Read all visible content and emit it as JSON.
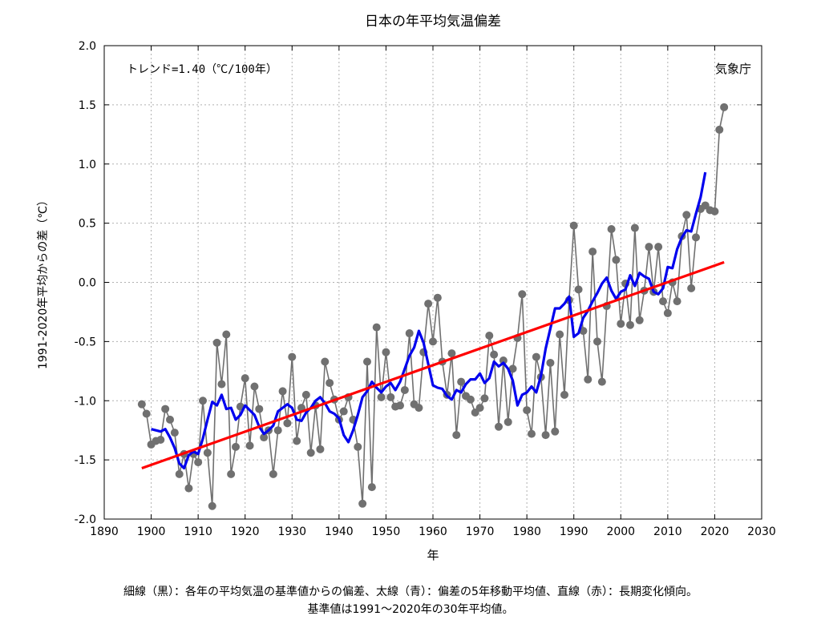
{
  "chart_data": {
    "type": "line",
    "title": "日本の年平均気温偏差",
    "xlabel": "年",
    "ylabel": "1991-2020年平均からの差（℃）",
    "xlim": [
      1890,
      2030
    ],
    "ylim": [
      -2.0,
      2.0
    ],
    "xticks": [
      1890,
      1900,
      1910,
      1920,
      1930,
      1940,
      1950,
      1960,
      1970,
      1980,
      1990,
      2000,
      2010,
      2020,
      2030
    ],
    "yticks": [
      2.0,
      1.5,
      1.0,
      0.5,
      0.0,
      -0.5,
      -1.0,
      -1.5,
      -2.0
    ],
    "ytick_labels": [
      "2.0",
      "1.5",
      "1.0",
      "0.5",
      "0.0",
      "-0.5",
      "-1.0",
      "-1.5",
      "-2.0"
    ],
    "grid": true,
    "trend_label": "トレンド=1.40（℃/100年）",
    "source_label": "気象庁",
    "series": [
      {
        "color": "#707070",
        "marker_color": "#707070",
        "start_year": 1898,
        "values": [
          -1.03,
          -1.11,
          -1.37,
          -1.34,
          -1.33,
          -1.07,
          -1.16,
          -1.27,
          -1.62,
          -1.45,
          -1.74,
          -1.45,
          -1.52,
          -1.0,
          -1.44,
          -1.89,
          -0.51,
          -0.86,
          -0.44,
          -1.62,
          -1.39,
          -1.05,
          -0.81,
          -1.38,
          -0.88,
          -1.07,
          -1.31,
          -1.25,
          -1.62,
          -1.25,
          -0.92,
          -1.19,
          -0.63,
          -1.34,
          -1.06,
          -0.95,
          -1.44,
          -1.04,
          -1.41,
          -0.67,
          -0.85,
          -0.99,
          -1.16,
          -1.09,
          -0.97,
          -1.16,
          -1.39,
          -1.87,
          -0.67,
          -1.73,
          -0.38,
          -0.97,
          -0.59,
          -0.97,
          -1.05,
          -1.04,
          -0.91,
          -0.43,
          -1.03,
          -1.06,
          -0.59,
          -0.18,
          -0.5,
          -0.13,
          -0.67,
          -0.95,
          -0.6,
          -1.29,
          -0.84,
          -0.96,
          -0.99,
          -1.1,
          -1.06,
          -0.98,
          -0.45,
          -0.61,
          -1.22,
          -0.66,
          -1.18,
          -0.73,
          -0.47,
          -0.1,
          -1.08,
          -1.28,
          -0.63,
          -0.8,
          -1.29,
          -0.68,
          -1.26,
          -0.44,
          -0.95,
          -0.15,
          0.48,
          -0.06,
          -0.41,
          -0.82,
          0.26,
          -0.5,
          -0.84,
          -0.2,
          0.45,
          0.19,
          -0.35,
          -0.01,
          -0.36,
          0.46,
          -0.32,
          -0.07,
          0.3,
          -0.08,
          0.3,
          -0.16,
          -0.26,
          0.0,
          -0.16,
          0.39,
          0.57,
          -0.05,
          0.38,
          0.62,
          0.65,
          0.61,
          0.6,
          1.29,
          1.48
        ]
      },
      {
        "color": "#0000ee",
        "start_year": 1900,
        "values": [
          -1.24,
          -1.25,
          -1.26,
          -1.24,
          -1.31,
          -1.4,
          -1.53,
          -1.57,
          -1.46,
          -1.43,
          -1.45,
          -1.32,
          -1.16,
          -1.01,
          -1.04,
          -0.95,
          -1.07,
          -1.06,
          -1.16,
          -1.12,
          -1.04,
          -1.08,
          -1.12,
          -1.22,
          -1.28,
          -1.25,
          -1.21,
          -1.09,
          -1.06,
          -1.03,
          -1.06,
          -1.16,
          -1.17,
          -1.1,
          -1.06,
          -1.0,
          -0.97,
          -1.02,
          -1.09,
          -1.11,
          -1.15,
          -1.29,
          -1.35,
          -1.25,
          -1.12,
          -0.97,
          -0.92,
          -0.84,
          -0.89,
          -0.93,
          -0.88,
          -0.85,
          -0.91,
          -0.84,
          -0.73,
          -0.62,
          -0.55,
          -0.41,
          -0.51,
          -0.69,
          -0.87,
          -0.89,
          -0.9,
          -0.96,
          -0.99,
          -0.91,
          -0.93,
          -0.86,
          -0.82,
          -0.82,
          -0.77,
          -0.85,
          -0.81,
          -0.67,
          -0.71,
          -0.68,
          -0.73,
          -0.83,
          -1.04,
          -0.95,
          -0.93,
          -0.88,
          -0.93,
          -0.79,
          -0.56,
          -0.39,
          -0.22,
          -0.22,
          -0.18,
          -0.12,
          -0.46,
          -0.43,
          -0.3,
          -0.24,
          -0.16,
          -0.09,
          -0.01,
          0.04,
          -0.07,
          -0.14,
          -0.08,
          -0.06,
          0.06,
          -0.03,
          0.08,
          0.05,
          0.03,
          -0.08,
          -0.1,
          -0.05,
          0.13,
          0.12,
          0.28,
          0.38,
          0.44,
          0.43,
          0.58,
          0.72,
          0.93
        ]
      },
      {
        "color": "#ff0000",
        "x": [
          1898,
          2022
        ],
        "values": [
          -1.57,
          0.17
        ]
      }
    ]
  },
  "caption": {
    "line1": "細線（黒）：各年の平均気温の基準値からの偏差、太線（青）：偏差の5年移動平均値、直線（赤）：長期変化傾向。",
    "line2": "基準値は1991〜2020年の30年平均値。"
  }
}
